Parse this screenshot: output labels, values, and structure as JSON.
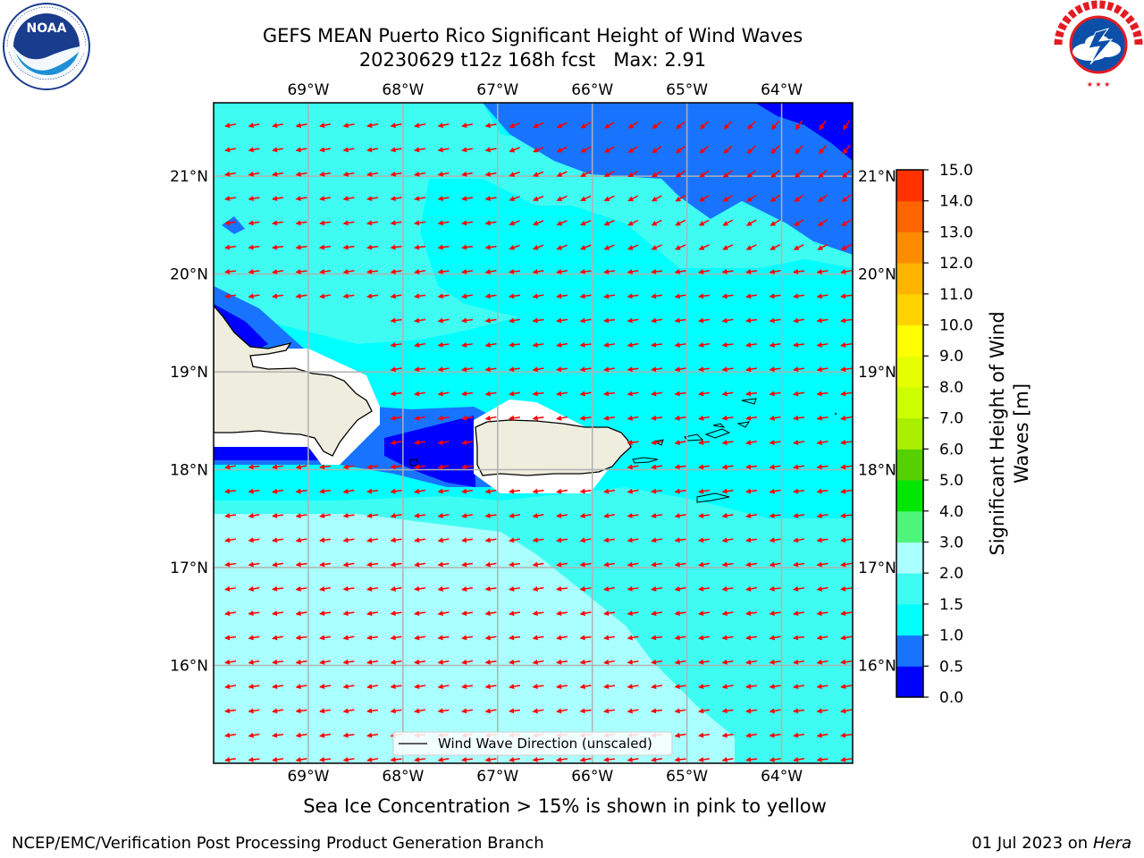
{
  "header": {
    "title_line1": "GEFS MEAN Puerto Rico Significant Height of Wind Waves",
    "title_line2": "20230629 t12z 168h fcst   Max: 2.91"
  },
  "logos": {
    "left": {
      "text": "NOAA",
      "ring_text": "NATIONAL OCEANIC AND ATMOSPHERIC ADMINISTRATION · U.S. DEPARTMENT OF COMMERCE",
      "color": "#1a3c8c"
    },
    "right": {
      "ring_text": "NATIONAL WEATHER SERVICE",
      "color": "#e31b23"
    }
  },
  "map": {
    "lon_ticks": [
      "69°W",
      "68°W",
      "67°W",
      "66°W",
      "65°W",
      "64°W"
    ],
    "lat_ticks": [
      "21°N",
      "20°N",
      "19°N",
      "18°N",
      "17°N",
      "16°N"
    ],
    "lon_range": [
      -70.0,
      -63.25
    ],
    "lat_range": [
      15.0,
      21.75
    ],
    "gridlines": true,
    "land_color": "#efedde",
    "arrow_color": "#ff0000",
    "legend": {
      "label": "Wind Wave Direction (unscaled)",
      "placement": "bottom-center"
    }
  },
  "colorbar": {
    "title": "Significant Height of Wind Waves [m]",
    "title_line1": "Significant Height of Wind",
    "title_line2": "Waves [m]",
    "bounds": [
      0.0,
      0.5,
      1.0,
      1.5,
      2.0,
      3.0,
      4.0,
      5.0,
      6.0,
      7.0,
      8.0,
      9.0,
      10.0,
      11.0,
      12.0,
      13.0,
      14.0,
      15.0
    ],
    "labels": [
      "0.0",
      "0.5",
      "1.0",
      "1.5",
      "2.0",
      "3.0",
      "4.0",
      "5.0",
      "6.0",
      "7.0",
      "8.0",
      "9.0",
      "10.0",
      "11.0",
      "12.0",
      "13.0",
      "14.0",
      "15.0"
    ],
    "colors": [
      "#0000ff",
      "#1874ff",
      "#00ffff",
      "#3ffcf2",
      "#aaffff",
      "#4ef57a",
      "#00e600",
      "#55d000",
      "#aaee00",
      "#ccff00",
      "#e6ff00",
      "#ffff00",
      "#ffd200",
      "#ffb400",
      "#ff8c00",
      "#ff6400",
      "#ff3200"
    ]
  },
  "caption": "Sea Ice Concentration > 15% is shown in pink to yellow",
  "footer": {
    "left": "NCEP/EMC/Verification Post Processing Product Generation Branch",
    "right_prefix": "01 Jul 2023 on ",
    "right_italic": "Hera"
  }
}
